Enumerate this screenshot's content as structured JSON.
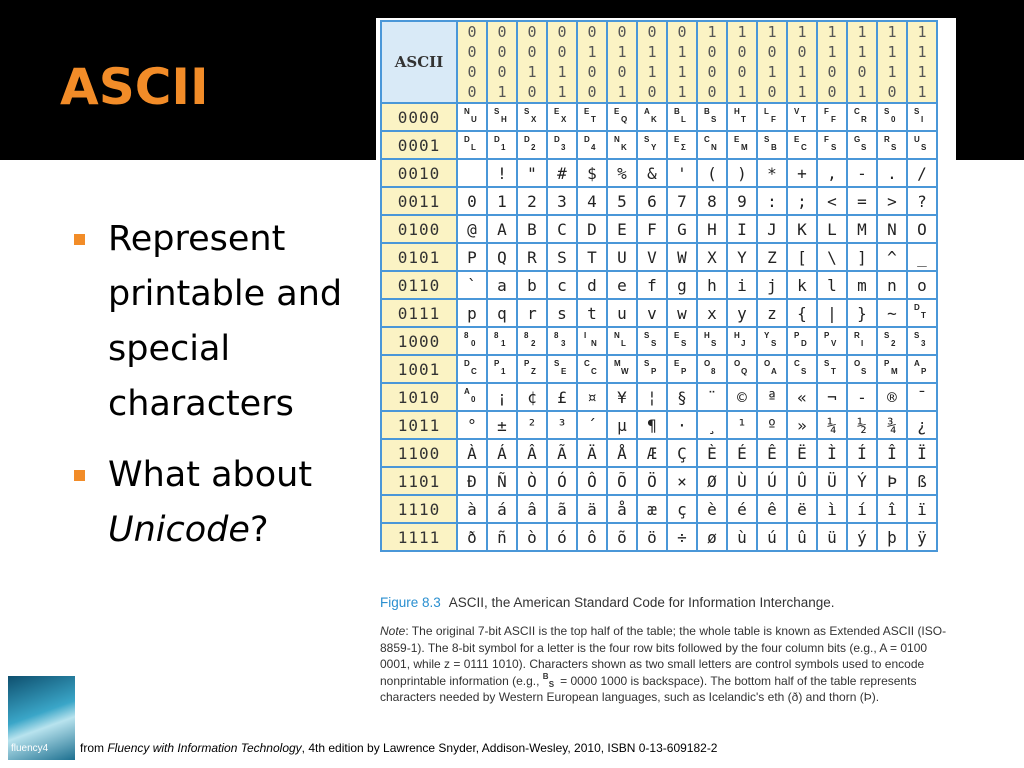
{
  "slide": {
    "title": "ASCII",
    "bullets": [
      {
        "text": "Represent printable and special characters"
      },
      {
        "before": "What about ",
        "italic": "Unicode",
        "after": "?"
      }
    ]
  },
  "table": {
    "corner": "ASCII",
    "columns": [
      "0000",
      "0001",
      "0010",
      "0011",
      "0100",
      "0101",
      "0110",
      "0111",
      "1000",
      "1001",
      "1010",
      "1011",
      "1100",
      "1101",
      "1110",
      "1111"
    ],
    "rows": [
      {
        "label": "0000",
        "cells": [
          {
            "top": "N",
            "bottom": "U"
          },
          {
            "top": "S",
            "bottom": "H"
          },
          {
            "top": "S",
            "bottom": "X"
          },
          {
            "top": "E",
            "bottom": "X"
          },
          {
            "top": "E",
            "bottom": "T"
          },
          {
            "top": "E",
            "bottom": "Q"
          },
          {
            "top": "A",
            "bottom": "K"
          },
          {
            "top": "B",
            "bottom": "L"
          },
          {
            "top": "B",
            "bottom": "S"
          },
          {
            "top": "H",
            "bottom": "T"
          },
          {
            "top": "L",
            "bottom": "F"
          },
          {
            "top": "V",
            "bottom": "T"
          },
          {
            "top": "F",
            "bottom": "F"
          },
          {
            "top": "C",
            "bottom": "R"
          },
          {
            "top": "S",
            "bottom": "0"
          },
          {
            "top": "S",
            "bottom": "I"
          }
        ]
      },
      {
        "label": "0001",
        "cells": [
          {
            "top": "D",
            "bottom": "L"
          },
          {
            "top": "D",
            "bottom": "1"
          },
          {
            "top": "D",
            "bottom": "2"
          },
          {
            "top": "D",
            "bottom": "3"
          },
          {
            "top": "D",
            "bottom": "4"
          },
          {
            "top": "N",
            "bottom": "K"
          },
          {
            "top": "S",
            "bottom": "Y"
          },
          {
            "top": "E",
            "bottom": "Σ"
          },
          {
            "top": "C",
            "bottom": "N"
          },
          {
            "top": "E",
            "bottom": "M"
          },
          {
            "top": "S",
            "bottom": "B"
          },
          {
            "top": "E",
            "bottom": "C"
          },
          {
            "top": "F",
            "bottom": "S"
          },
          {
            "top": "G",
            "bottom": "S"
          },
          {
            "top": "R",
            "bottom": "S"
          },
          {
            "top": "U",
            "bottom": "S"
          }
        ]
      },
      {
        "label": "0010",
        "cells": [
          null,
          "!",
          "\"",
          "#",
          "$",
          "%",
          "&",
          "'",
          "(",
          ")",
          "*",
          "+",
          ",",
          "-",
          ".",
          "/"
        ]
      },
      {
        "label": "0011",
        "cells": [
          "0",
          "1",
          "2",
          "3",
          "4",
          "5",
          "6",
          "7",
          "8",
          "9",
          ":",
          ";",
          "<",
          "=",
          ">",
          "?"
        ]
      },
      {
        "label": "0100",
        "cells": [
          "@",
          "A",
          "B",
          "C",
          "D",
          "E",
          "F",
          "G",
          "H",
          "I",
          "J",
          "K",
          "L",
          "M",
          "N",
          "O"
        ]
      },
      {
        "label": "0101",
        "cells": [
          "P",
          "Q",
          "R",
          "S",
          "T",
          "U",
          "V",
          "W",
          "X",
          "Y",
          "Z",
          "[",
          "\\",
          "]",
          "^",
          "_"
        ]
      },
      {
        "label": "0110",
        "cells": [
          "`",
          "a",
          "b",
          "c",
          "d",
          "e",
          "f",
          "g",
          "h",
          "i",
          "j",
          "k",
          "l",
          "m",
          "n",
          "o"
        ]
      },
      {
        "label": "0111",
        "cells": [
          "p",
          "q",
          "r",
          "s",
          "t",
          "u",
          "v",
          "w",
          "x",
          "y",
          "z",
          "{",
          "|",
          "}",
          "~",
          {
            "top": "D",
            "bottom": "T"
          }
        ]
      },
      {
        "label": "1000",
        "cells": [
          {
            "top": "8",
            "bottom": "0"
          },
          {
            "top": "8",
            "bottom": "1"
          },
          {
            "top": "8",
            "bottom": "2"
          },
          {
            "top": "8",
            "bottom": "3"
          },
          {
            "top": "I",
            "bottom": "N"
          },
          {
            "top": "N",
            "bottom": "L"
          },
          {
            "top": "S",
            "bottom": "S"
          },
          {
            "top": "E",
            "bottom": "S"
          },
          {
            "top": "H",
            "bottom": "S"
          },
          {
            "top": "H",
            "bottom": "J"
          },
          {
            "top": "Y",
            "bottom": "S"
          },
          {
            "top": "P",
            "bottom": "D"
          },
          {
            "top": "P",
            "bottom": "V"
          },
          {
            "top": "R",
            "bottom": "I"
          },
          {
            "top": "S",
            "bottom": "2"
          },
          {
            "top": "S",
            "bottom": "3"
          }
        ]
      },
      {
        "label": "1001",
        "cells": [
          {
            "top": "D",
            "bottom": "C"
          },
          {
            "top": "P",
            "bottom": "1"
          },
          {
            "top": "P",
            "bottom": "Z"
          },
          {
            "top": "S",
            "bottom": "E"
          },
          {
            "top": "C",
            "bottom": "C"
          },
          {
            "top": "M",
            "bottom": "W"
          },
          {
            "top": "S",
            "bottom": "P"
          },
          {
            "top": "E",
            "bottom": "P"
          },
          {
            "top": "O",
            "bottom": "8"
          },
          {
            "top": "O",
            "bottom": "Q"
          },
          {
            "top": "O",
            "bottom": "A"
          },
          {
            "top": "C",
            "bottom": "S"
          },
          {
            "top": "S",
            "bottom": "T"
          },
          {
            "top": "O",
            "bottom": "S"
          },
          {
            "top": "P",
            "bottom": "M"
          },
          {
            "top": "A",
            "bottom": "P"
          }
        ]
      },
      {
        "label": "1010",
        "cells": [
          {
            "top": "A",
            "bottom": "0"
          },
          "¡",
          "¢",
          "£",
          "¤",
          "¥",
          "¦",
          "§",
          "¨",
          "©",
          "ª",
          "«",
          "¬",
          "-",
          "®",
          "¯"
        ]
      },
      {
        "label": "1011",
        "cells": [
          "°",
          "±",
          "²",
          "³",
          "´",
          "µ",
          "¶",
          "·",
          "¸",
          "¹",
          "º",
          "»",
          "¼",
          "½",
          "¾",
          "¿"
        ]
      },
      {
        "label": "1100",
        "cells": [
          "À",
          "Á",
          "Â",
          "Ã",
          "Ä",
          "Å",
          "Æ",
          "Ç",
          "È",
          "É",
          "Ê",
          "Ë",
          "Ì",
          "Í",
          "Î",
          "Ï"
        ]
      },
      {
        "label": "1101",
        "cells": [
          "Ð",
          "Ñ",
          "Ò",
          "Ó",
          "Ô",
          "Õ",
          "Ö",
          "×",
          "Ø",
          "Ù",
          "Ú",
          "Û",
          "Ü",
          "Ý",
          "Þ",
          "ß"
        ]
      },
      {
        "label": "1110",
        "cells": [
          "à",
          "á",
          "â",
          "ã",
          "ä",
          "å",
          "æ",
          "ç",
          "è",
          "é",
          "ê",
          "ë",
          "ì",
          "í",
          "î",
          "ï"
        ]
      },
      {
        "label": "1111",
        "cells": [
          "ð",
          "ñ",
          "ò",
          "ó",
          "ô",
          "õ",
          "ö",
          "÷",
          "ø",
          "ù",
          "ú",
          "û",
          "ü",
          "ý",
          "þ",
          "ÿ"
        ]
      }
    ]
  },
  "figure": {
    "label": "Figure 8.3",
    "caption": "ASCII, the American Standard Code for Information Interchange.",
    "note_label": "Note",
    "note_text_1": ": The original 7-bit ASCII is the top half of the table; the whole table is known as Extended ASCII (ISO-8859-1). The 8-bit symbol for a letter is the four row bits followed by the four column bits (e.g., A = 0100 0001, while z = 0111 1010). Characters shown as two small letters are control symbols used to encode nonprintable information (e.g., ",
    "note_symbol": {
      "top": "B",
      "bottom": "S"
    },
    "note_text_2": " = 0000 1000 is backspace). The bottom half of the table represents characters needed by Western European languages, such as Icelandic's eth (ð) and thorn (Þ)."
  },
  "credit": {
    "thumbnail": "fluency4",
    "before": "from ",
    "italic": "Fluency with Information Technology",
    "after": ", 4th edition by Lawrence Snyder, Addison-Wesley, 2010, ISBN 0-13-609182-2"
  }
}
